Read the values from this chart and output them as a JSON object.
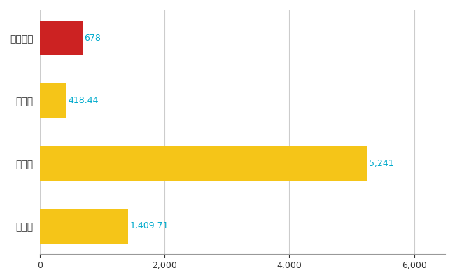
{
  "categories": [
    "伊達市",
    "県平均",
    "県最大",
    "全国平均"
  ],
  "values": [
    678,
    418.44,
    5241,
    1409.71
  ],
  "bar_colors": [
    "#cc2222",
    "#f5c518",
    "#f5c518",
    "#f5c518"
  ],
  "value_labels": [
    "678",
    "418.44",
    "5,241",
    "1,409.71"
  ],
  "xlim": [
    0,
    6500
  ],
  "xticks": [
    0,
    2000,
    4000,
    6000
  ],
  "background_color": "#ffffff",
  "grid_color": "#cccccc",
  "label_color": "#00aacc",
  "bar_height": 0.55
}
